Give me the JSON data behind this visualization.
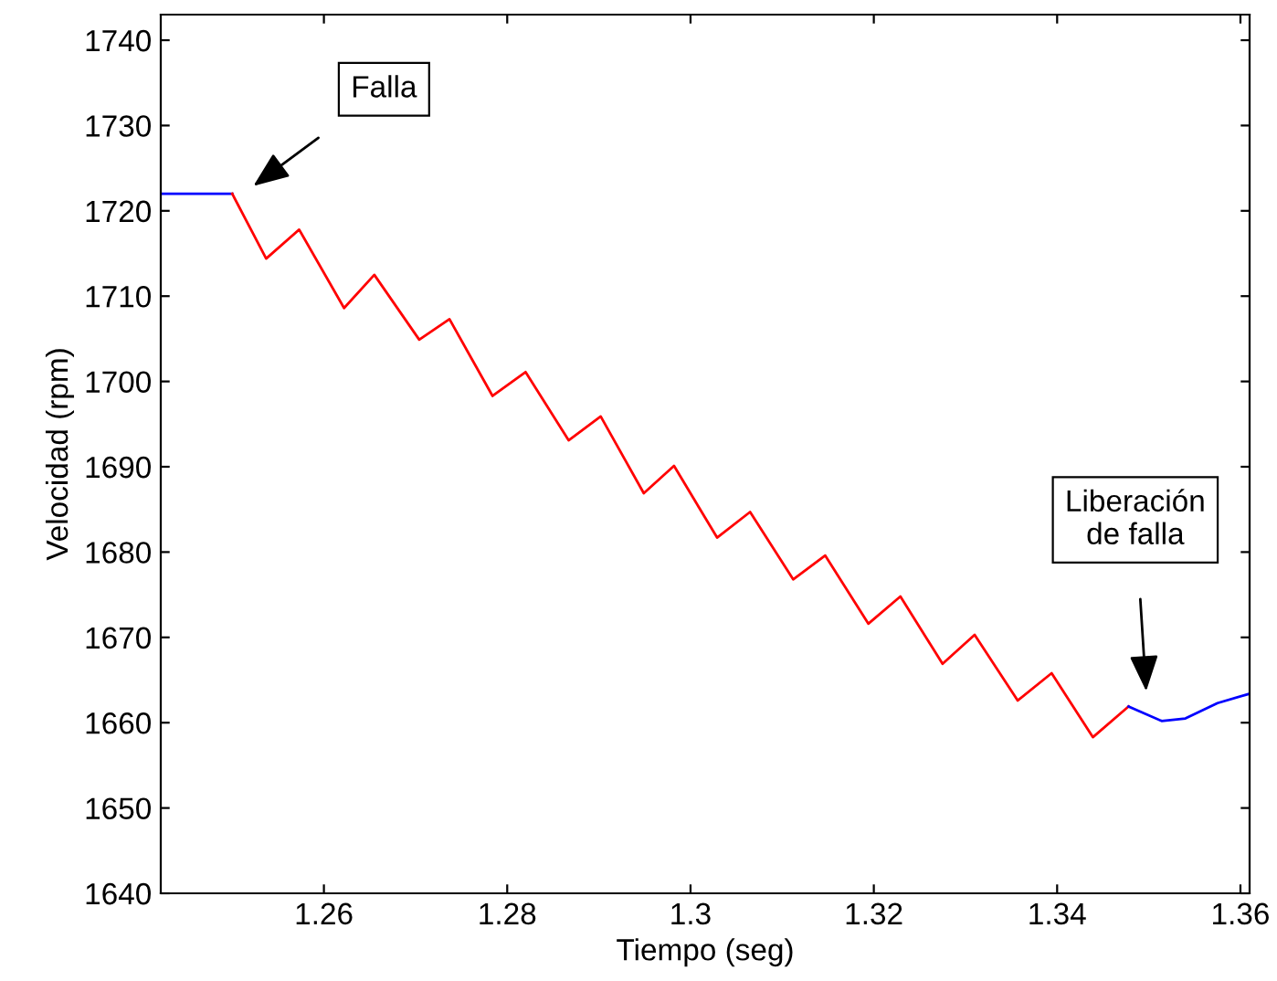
{
  "chart_data": {
    "type": "line",
    "xlabel": "Tiempo (seg)",
    "ylabel": "Velocidad (rpm)",
    "xlim": [
      1.2422,
      1.361
    ],
    "ylim": [
      1640,
      1743
    ],
    "xticks": [
      1.26,
      1.28,
      1.3,
      1.32,
      1.34,
      1.36
    ],
    "yticks": [
      1640,
      1650,
      1660,
      1670,
      1680,
      1690,
      1700,
      1710,
      1720,
      1730,
      1740
    ],
    "grid": false,
    "marker": "none",
    "line_style": "solid",
    "series": [
      {
        "color": "#0000ff",
        "x": [
          1.2422,
          1.25
        ],
        "values": [
          1722,
          1722
        ]
      },
      {
        "color": "#ff0000",
        "x": [
          1.25,
          1.2537,
          1.2573,
          1.2622,
          1.2655,
          1.2704,
          1.2737,
          1.2784,
          1.282,
          1.2867,
          1.2902,
          1.2949,
          1.2982,
          1.3029,
          1.3065,
          1.3112,
          1.3147,
          1.3194,
          1.3229,
          1.3275,
          1.331,
          1.3357,
          1.3394,
          1.3439,
          1.3478
        ],
        "values": [
          1722,
          1714.4,
          1717.8,
          1708.6,
          1712.5,
          1704.9,
          1707.3,
          1698.3,
          1701.1,
          1693.1,
          1695.9,
          1686.9,
          1690.1,
          1681.7,
          1684.7,
          1676.8,
          1679.6,
          1671.6,
          1674.8,
          1666.9,
          1670.3,
          1662.6,
          1665.8,
          1658.3,
          1661.9
        ]
      },
      {
        "color": "#0000ff",
        "x": [
          1.3478,
          1.3514,
          1.354,
          1.3575,
          1.361
        ],
        "values": [
          1661.9,
          1660.2,
          1660.5,
          1662.3,
          1663.4
        ]
      }
    ],
    "annotations": [
      "Falla",
      "Liberación\nde falla"
    ]
  }
}
